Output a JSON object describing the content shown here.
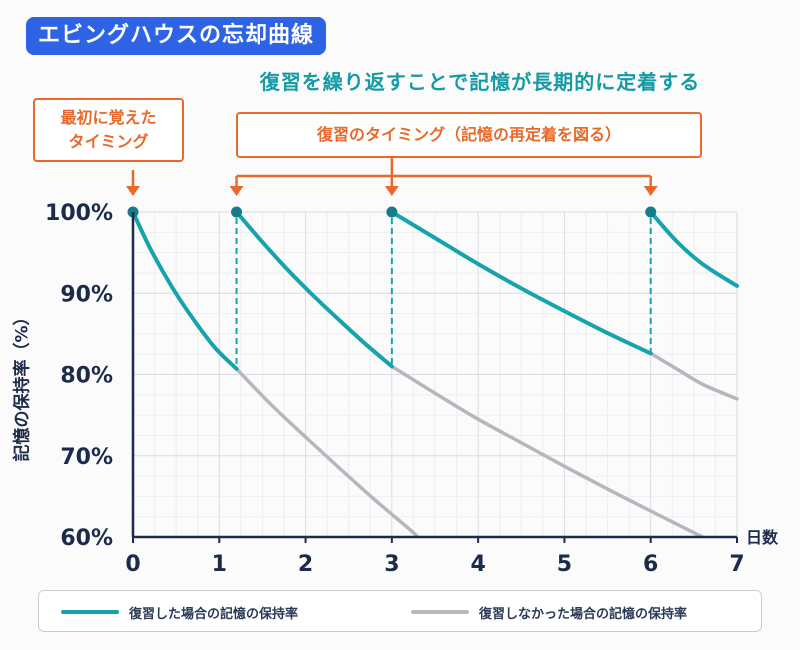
{
  "title": "エビングハウスの忘却曲線",
  "subtitle": "復習を繰り返すことで記憶が長期的に定着する",
  "callouts": {
    "first_line1": "最初に覚えた",
    "first_line2": "タイミング",
    "review": "復習のタイミング（記憶の再定着を図る）"
  },
  "colors": {
    "reviewed": "#16a3ab",
    "not_reviewed": "#b5b7bd",
    "accent": "#e8692b",
    "title_bg": "#2f63e6",
    "axis": "#1c2b4a"
  },
  "chart_data": {
    "type": "line",
    "title": "エビングハウスの忘却曲線",
    "xlabel": "日数",
    "ylabel": "記憶の保持率（%）",
    "xlim": [
      0,
      7
    ],
    "ylim": [
      60,
      100
    ],
    "x_ticks": [
      "0",
      "1",
      "2",
      "3",
      "4",
      "5",
      "6",
      "7"
    ],
    "y_ticks": [
      "60%",
      "70%",
      "80%",
      "90%",
      "100%"
    ],
    "grid": true,
    "legend_position": "bottom",
    "review_points": [
      0,
      1.2,
      3,
      6
    ],
    "series": [
      {
        "name": "復習した場合の記憶の保持率",
        "color": "#16a3ab",
        "segments": [
          [
            [
              0,
              100
            ],
            [
              0.2,
              95.5
            ],
            [
              0.45,
              90.8
            ],
            [
              0.7,
              86.8
            ],
            [
              0.95,
              83.3
            ],
            [
              1.2,
              80.7
            ]
          ],
          [
            [
              1.2,
              100
            ],
            [
              1.5,
              96.3
            ],
            [
              1.8,
              92.8
            ],
            [
              2.1,
              89.6
            ],
            [
              2.4,
              86.6
            ],
            [
              2.7,
              83.7
            ],
            [
              3.0,
              81.0
            ]
          ],
          [
            [
              3.0,
              100
            ],
            [
              3.5,
              96.8
            ],
            [
              4.0,
              93.6
            ],
            [
              4.5,
              90.6
            ],
            [
              5.0,
              87.8
            ],
            [
              5.5,
              85.1
            ],
            [
              6.0,
              82.6
            ]
          ],
          [
            [
              6.0,
              100
            ],
            [
              6.3,
              96.4
            ],
            [
              6.6,
              93.6
            ],
            [
              7.0,
              90.9
            ]
          ]
        ]
      },
      {
        "name": "復習しなかった場合の記憶の保持率",
        "color": "#b5b7bd",
        "segments": [
          [
            [
              1.2,
              80.7
            ],
            [
              1.6,
              76.3
            ],
            [
              2.0,
              72.3
            ],
            [
              2.4,
              68.4
            ],
            [
              2.8,
              64.6
            ],
            [
              3.2,
              61.0
            ],
            [
              3.3,
              60.0
            ]
          ],
          [
            [
              3.0,
              81.0
            ],
            [
              3.5,
              77.7
            ],
            [
              4.0,
              74.5
            ],
            [
              4.5,
              71.6
            ],
            [
              5.0,
              68.7
            ],
            [
              5.5,
              65.9
            ],
            [
              6.0,
              63.2
            ],
            [
              6.6,
              60.0
            ]
          ],
          [
            [
              6.0,
              82.6
            ],
            [
              6.3,
              80.7
            ],
            [
              6.6,
              78.8
            ],
            [
              7.0,
              77.0
            ]
          ]
        ]
      }
    ]
  }
}
